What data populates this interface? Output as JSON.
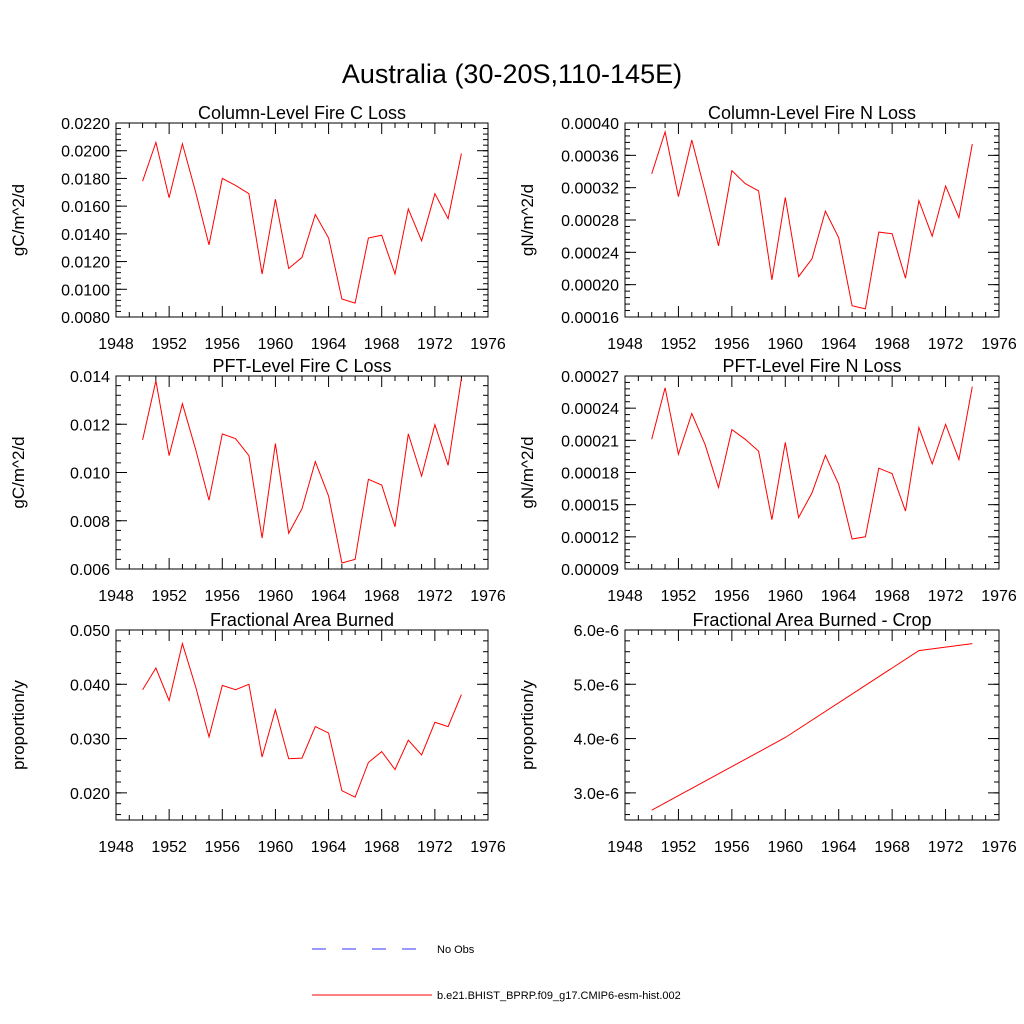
{
  "figure_title": "Australia (30-20S,110-145E)",
  "legend": [
    {
      "label": "No Obs",
      "color": "#3333ff",
      "style": "dashed"
    },
    {
      "label": "b.e21.BHIST_BPRP.f09_g17.CMIP6-esm-hist.002",
      "color": "#ff0000",
      "style": "solid"
    }
  ],
  "chart_data": [
    {
      "type": "line",
      "title": "Column-Level Fire C Loss",
      "xlabel": "",
      "ylabel": "gC/m^2/d",
      "xlim": [
        1948,
        1976
      ],
      "ylim": [
        0.008,
        0.022
      ],
      "xticks": [
        1948,
        1952,
        1956,
        1960,
        1964,
        1968,
        1972,
        1976
      ],
      "yticks": [
        0.008,
        0.01,
        0.012,
        0.014,
        0.016,
        0.018,
        0.02,
        0.022
      ],
      "yticklabels": [
        "0.0080",
        "0.0100",
        "0.0120",
        "0.0140",
        "0.0160",
        "0.0180",
        "0.0200",
        "0.0220"
      ],
      "series": [
        {
          "name": "b.e21.BHIST_BPRP.f09_g17.CMIP6-esm-hist.002",
          "color": "#ff0000",
          "x": [
            1950,
            1951,
            1952,
            1953,
            1954,
            1955,
            1956,
            1957,
            1958,
            1959,
            1960,
            1961,
            1962,
            1963,
            1964,
            1965,
            1966,
            1967,
            1968,
            1969,
            1970,
            1971,
            1972,
            1973,
            1974
          ],
          "y": [
            0.0178,
            0.0206,
            0.0166,
            0.0205,
            0.017,
            0.0132,
            0.018,
            0.0175,
            0.0169,
            0.0111,
            0.0165,
            0.0115,
            0.0123,
            0.0154,
            0.0137,
            0.0093,
            0.009,
            0.0137,
            0.0139,
            0.0111,
            0.0158,
            0.0135,
            0.0169,
            0.0151,
            0.0198
          ]
        }
      ]
    },
    {
      "type": "line",
      "title": "Column-Level Fire N Loss",
      "xlabel": "",
      "ylabel": "gN/m^2/d",
      "xlim": [
        1948,
        1976
      ],
      "ylim": [
        0.00016,
        0.0004
      ],
      "xticks": [
        1948,
        1952,
        1956,
        1960,
        1964,
        1968,
        1972,
        1976
      ],
      "yticks": [
        0.00016,
        0.0002,
        0.00024,
        0.00028,
        0.00032,
        0.00036,
        0.0004
      ],
      "yticklabels": [
        "0.00016",
        "0.00020",
        "0.00024",
        "0.00028",
        "0.00032",
        "0.00036",
        "0.00040"
      ],
      "series": [
        {
          "name": "b.e21.BHIST_BPRP.f09_g17.CMIP6-esm-hist.002",
          "color": "#ff0000",
          "x": [
            1950,
            1951,
            1952,
            1953,
            1954,
            1955,
            1956,
            1957,
            1958,
            1959,
            1960,
            1961,
            1962,
            1963,
            1964,
            1965,
            1966,
            1967,
            1968,
            1969,
            1970,
            1971,
            1972,
            1973,
            1974
          ],
          "y": [
            0.000337,
            0.000389,
            0.000309,
            0.000379,
            0.000315,
            0.000248,
            0.000341,
            0.000325,
            0.000316,
            0.000206,
            0.000308,
            0.00021,
            0.000232,
            0.000291,
            0.000258,
            0.000174,
            0.00017,
            0.000265,
            0.000263,
            0.000208,
            0.000304,
            0.00026,
            0.000322,
            0.000283,
            0.000374
          ]
        }
      ]
    },
    {
      "type": "line",
      "title": "PFT-Level Fire C Loss",
      "xlabel": "",
      "ylabel": "gC/m^2/d",
      "xlim": [
        1948,
        1976
      ],
      "ylim": [
        0.006,
        0.014
      ],
      "xticks": [
        1948,
        1952,
        1956,
        1960,
        1964,
        1968,
        1972,
        1976
      ],
      "yticks": [
        0.006,
        0.008,
        0.01,
        0.012,
        0.014
      ],
      "yticklabels": [
        "0.006",
        "0.008",
        "0.010",
        "0.012",
        "0.014"
      ],
      "series": [
        {
          "name": "b.e21.BHIST_BPRP.f09_g17.CMIP6-esm-hist.002",
          "color": "#ff0000",
          "x": [
            1950,
            1951,
            1952,
            1953,
            1954,
            1955,
            1956,
            1957,
            1958,
            1959,
            1960,
            1961,
            1962,
            1963,
            1964,
            1965,
            1966,
            1967,
            1968,
            1969,
            1970,
            1971,
            1972,
            1973,
            1974
          ],
          "y": [
            0.01135,
            0.0138,
            0.0107,
            0.01285,
            0.01095,
            0.00885,
            0.0116,
            0.0114,
            0.0107,
            0.00728,
            0.0112,
            0.00748,
            0.0085,
            0.01045,
            0.00902,
            0.00625,
            0.0064,
            0.00972,
            0.00948,
            0.00775,
            0.0116,
            0.00985,
            0.01198,
            0.0103,
            0.0139
          ]
        }
      ]
    },
    {
      "type": "line",
      "title": "PFT-Level Fire N Loss",
      "xlabel": "",
      "ylabel": "gN/m^2/d",
      "xlim": [
        1948,
        1976
      ],
      "ylim": [
        9e-05,
        0.00027
      ],
      "xticks": [
        1948,
        1952,
        1956,
        1960,
        1964,
        1968,
        1972,
        1976
      ],
      "yticks": [
        9e-05,
        0.00012,
        0.00015,
        0.00018,
        0.00021,
        0.00024,
        0.00027
      ],
      "yticklabels": [
        "0.00009",
        "0.00012",
        "0.00015",
        "0.00018",
        "0.00021",
        "0.00024",
        "0.00027"
      ],
      "series": [
        {
          "name": "b.e21.BHIST_BPRP.f09_g17.CMIP6-esm-hist.002",
          "color": "#ff0000",
          "x": [
            1950,
            1951,
            1952,
            1953,
            1954,
            1955,
            1956,
            1957,
            1958,
            1959,
            1960,
            1961,
            1962,
            1963,
            1964,
            1965,
            1966,
            1967,
            1968,
            1969,
            1970,
            1971,
            1972,
            1973,
            1974
          ],
          "y": [
            0.000211,
            0.000259,
            0.000197,
            0.000235,
            0.000206,
            0.000166,
            0.00022,
            0.000211,
            0.0002,
            0.000136,
            0.000208,
            0.000138,
            0.000161,
            0.000196,
            0.000169,
            0.000118,
            0.00012,
            0.000184,
            0.000179,
            0.000144,
            0.000222,
            0.000188,
            0.000225,
            0.000192,
            0.00026
          ]
        }
      ]
    },
    {
      "type": "line",
      "title": "Fractional Area Burned",
      "xlabel": "",
      "ylabel": "proportion/y",
      "xlim": [
        1948,
        1976
      ],
      "ylim": [
        0.015,
        0.05
      ],
      "xticks": [
        1948,
        1952,
        1956,
        1960,
        1964,
        1968,
        1972,
        1976
      ],
      "yticks": [
        0.02,
        0.03,
        0.04,
        0.05
      ],
      "yticklabels": [
        "0.020",
        "0.030",
        "0.040",
        "0.050"
      ],
      "series": [
        {
          "name": "b.e21.BHIST_BPRP.f09_g17.CMIP6-esm-hist.002",
          "color": "#ff0000",
          "x": [
            1950,
            1951,
            1952,
            1953,
            1954,
            1955,
            1956,
            1957,
            1958,
            1959,
            1960,
            1961,
            1962,
            1963,
            1964,
            1965,
            1966,
            1967,
            1968,
            1969,
            1970,
            1971,
            1972,
            1973,
            1974
          ],
          "y": [
            0.039,
            0.043,
            0.037,
            0.0475,
            0.0395,
            0.0303,
            0.0398,
            0.039,
            0.04,
            0.0266,
            0.0353,
            0.0263,
            0.0264,
            0.0322,
            0.031,
            0.0204,
            0.0192,
            0.0256,
            0.0276,
            0.0243,
            0.0297,
            0.027,
            0.033,
            0.0322,
            0.0381
          ]
        }
      ]
    },
    {
      "type": "line",
      "title": "Fractional Area Burned - Crop",
      "xlabel": "",
      "ylabel": "proportion/y",
      "xlim": [
        1948,
        1976
      ],
      "ylim": [
        2.5e-06,
        6e-06
      ],
      "xticks": [
        1948,
        1952,
        1956,
        1960,
        1964,
        1968,
        1972,
        1976
      ],
      "yticks": [
        3e-06,
        4e-06,
        5e-06,
        6e-06
      ],
      "yticklabels": [
        "3.0e-6",
        "4.0e-6",
        "5.0e-6",
        "6.0e-6"
      ],
      "series": [
        {
          "name": "b.e21.BHIST_BPRP.f09_g17.CMIP6-esm-hist.002",
          "color": "#ff0000",
          "x": [
            1950,
            1960,
            1970,
            1974
          ],
          "y": [
            2.68e-06,
            4.02e-06,
            5.62e-06,
            5.75e-06
          ]
        }
      ]
    }
  ]
}
